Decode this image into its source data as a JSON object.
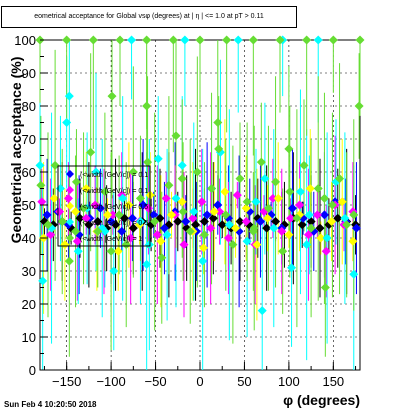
{
  "chart_data": {
    "type": "scatter",
    "title": "eometrical acceptance for Global vsφ (degrees) at | η | <= 1.0 at pT > 0.11",
    "xlabel": "φ (degrees)",
    "ylabel": "Geometrical acceptance (%)",
    "xlim": [
      -180,
      180
    ],
    "ylim": [
      0,
      100
    ],
    "x_ticks": [
      "−150",
      "−100",
      "−50",
      "0",
      "50",
      "100",
      "150"
    ],
    "y_ticks": [
      "0",
      "10",
      "20",
      "30",
      "40",
      "50",
      "60",
      "70",
      "80",
      "90",
      "100"
    ],
    "grid": true,
    "legend": {
      "placement": "left-middle",
      "entries": [
        "(<width [GeV/c]) = 0.1",
        "(<width [GeV/c]) = 0.1",
        "(<width [GeV/c]) = 0.5",
        "(<width [GeV/c]) = 0.5",
        "(<width [GeV/c]) = 1"
      ]
    },
    "series": [
      {
        "color": "#000000",
        "points": [
          [
            -175,
            45
          ],
          [
            -165,
            44
          ],
          [
            -155,
            45
          ],
          [
            -145,
            43
          ],
          [
            -135,
            46
          ],
          [
            -125,
            44
          ],
          [
            -115,
            45
          ],
          [
            -105,
            43
          ],
          [
            -95,
            44
          ],
          [
            -85,
            46
          ],
          [
            -75,
            43
          ],
          [
            -65,
            45
          ],
          [
            -55,
            44
          ],
          [
            -45,
            46
          ],
          [
            -35,
            44
          ],
          [
            -25,
            45
          ],
          [
            -15,
            43
          ],
          [
            -5,
            44
          ],
          [
            5,
            45
          ],
          [
            15,
            46
          ],
          [
            25,
            44
          ],
          [
            35,
            43
          ],
          [
            45,
            45
          ],
          [
            55,
            44
          ],
          [
            65,
            46
          ],
          [
            75,
            43
          ],
          [
            85,
            45
          ],
          [
            95,
            44
          ],
          [
            105,
            46
          ],
          [
            115,
            44
          ],
          [
            125,
            45
          ],
          [
            135,
            43
          ],
          [
            145,
            44
          ],
          [
            155,
            46
          ],
          [
            165,
            45
          ],
          [
            175,
            44
          ]
        ]
      },
      {
        "color": "#0000ff",
        "points": [
          [
            -172,
            47
          ],
          [
            -160,
            48
          ],
          [
            -148,
            44
          ],
          [
            -136,
            41
          ],
          [
            -124,
            46
          ],
          [
            -112,
            49
          ],
          [
            -100,
            45
          ],
          [
            -88,
            42
          ],
          [
            -76,
            46
          ],
          [
            -64,
            50
          ],
          [
            -52,
            47
          ],
          [
            -40,
            43
          ],
          [
            -28,
            48
          ],
          [
            -16,
            45
          ],
          [
            -4,
            42
          ],
          [
            8,
            47
          ],
          [
            20,
            50
          ],
          [
            32,
            46
          ],
          [
            44,
            42
          ],
          [
            56,
            48
          ],
          [
            68,
            45
          ],
          [
            80,
            47
          ],
          [
            92,
            43
          ],
          [
            104,
            49
          ],
          [
            116,
            46
          ],
          [
            128,
            42
          ],
          [
            140,
            47
          ],
          [
            152,
            51
          ],
          [
            164,
            45
          ],
          [
            176,
            43
          ]
        ]
      },
      {
        "color": "#ff00ff",
        "points": [
          [
            -178,
            51
          ],
          [
            -168,
            41
          ],
          [
            -158,
            48
          ],
          [
            -148,
            52
          ],
          [
            -138,
            39
          ],
          [
            -128,
            46
          ],
          [
            -118,
            50
          ],
          [
            -108,
            42
          ],
          [
            -98,
            47
          ],
          [
            -88,
            53
          ],
          [
            -78,
            40
          ],
          [
            -68,
            45
          ],
          [
            -58,
            49
          ],
          [
            -48,
            41
          ],
          [
            -38,
            52
          ],
          [
            -28,
            47
          ],
          [
            -18,
            38
          ],
          [
            -8,
            46
          ],
          [
            2,
            51
          ],
          [
            12,
            43
          ],
          [
            22,
            48
          ],
          [
            32,
            40
          ],
          [
            42,
            53
          ],
          [
            52,
            45
          ],
          [
            62,
            38
          ],
          [
            72,
            48
          ],
          [
            82,
            52
          ],
          [
            92,
            42
          ],
          [
            102,
            46
          ],
          [
            112,
            50
          ],
          [
            122,
            41
          ],
          [
            132,
            47
          ],
          [
            142,
            36
          ],
          [
            152,
            50
          ],
          [
            162,
            44
          ],
          [
            172,
            48
          ]
        ]
      },
      {
        "color": "#ffff00",
        "points": [
          [
            -176,
            40
          ],
          [
            -164,
            52
          ],
          [
            -152,
            38
          ],
          [
            -140,
            48
          ],
          [
            -128,
            55
          ],
          [
            -116,
            42
          ],
          [
            -104,
            47
          ],
          [
            -92,
            36
          ],
          [
            -80,
            50
          ],
          [
            -68,
            44
          ],
          [
            -56,
            53
          ],
          [
            -44,
            39
          ],
          [
            -32,
            47
          ],
          [
            -20,
            51
          ],
          [
            -8,
            42
          ],
          [
            4,
            37
          ],
          [
            16,
            48
          ],
          [
            28,
            54
          ],
          [
            40,
            43
          ],
          [
            52,
            49
          ],
          [
            64,
            38
          ],
          [
            76,
            46
          ],
          [
            88,
            52
          ],
          [
            100,
            41
          ],
          [
            112,
            47
          ],
          [
            124,
            55
          ],
          [
            136,
            40
          ],
          [
            148,
            45
          ],
          [
            160,
            51
          ],
          [
            172,
            39
          ]
        ]
      },
      {
        "color": "#00ffff",
        "points": [
          [
            -177,
            27
          ],
          [
            -167,
            43
          ],
          [
            -157,
            55
          ],
          [
            -147,
            83
          ],
          [
            -137,
            36
          ],
          [
            -127,
            49
          ],
          [
            -117,
            60
          ],
          [
            -107,
            42
          ],
          [
            -97,
            30
          ],
          [
            -87,
            52
          ],
          [
            -77,
            100
          ],
          [
            -67,
            45
          ],
          [
            -57,
            38
          ],
          [
            -47,
            64
          ],
          [
            -37,
            41
          ],
          [
            -27,
            52
          ],
          [
            -17,
            100
          ],
          [
            -7,
            48
          ],
          [
            3,
            33
          ],
          [
            13,
            55
          ],
          [
            23,
            66
          ],
          [
            33,
            44
          ],
          [
            43,
            100
          ],
          [
            53,
            39
          ],
          [
            63,
            51
          ],
          [
            73,
            58
          ],
          [
            83,
            43
          ],
          [
            93,
            100
          ],
          [
            103,
            31
          ],
          [
            113,
            54
          ],
          [
            123,
            47
          ],
          [
            133,
            100
          ],
          [
            143,
            40
          ],
          [
            153,
            57
          ],
          [
            163,
            46
          ],
          [
            173,
            29
          ],
          [
            -150,
            75
          ],
          [
            -110,
            43
          ],
          [
            -60,
            32
          ],
          [
            -20,
            62
          ],
          [
            70,
            18
          ],
          [
            120,
            38
          ],
          [
            -180,
            62
          ]
        ]
      },
      {
        "color": "#66dd33",
        "points": [
          [
            -179,
            56
          ],
          [
            -171,
            44
          ],
          [
            -163,
            62
          ],
          [
            -155,
            45
          ],
          [
            -147,
            33
          ],
          [
            -139,
            57
          ],
          [
            -131,
            49
          ],
          [
            -123,
            66
          ],
          [
            -115,
            42
          ],
          [
            -107,
            54
          ],
          [
            -99,
            83
          ],
          [
            -91,
            47
          ],
          [
            -83,
            38
          ],
          [
            -75,
            60
          ],
          [
            -67,
            52
          ],
          [
            -59,
            63
          ],
          [
            -51,
            45
          ],
          [
            -43,
            34
          ],
          [
            -35,
            56
          ],
          [
            -27,
            71
          ],
          [
            -19,
            48
          ],
          [
            -11,
            42
          ],
          [
            -3,
            60
          ],
          [
            5,
            41
          ],
          [
            13,
            55
          ],
          [
            21,
            67
          ],
          [
            29,
            47
          ],
          [
            37,
            38
          ],
          [
            45,
            58
          ],
          [
            53,
            51
          ],
          [
            61,
            43
          ],
          [
            69,
            63
          ],
          [
            77,
            49
          ],
          [
            85,
            57
          ],
          [
            93,
            36
          ],
          [
            101,
            54
          ],
          [
            109,
            46
          ],
          [
            117,
            62
          ],
          [
            125,
            43
          ],
          [
            133,
            55
          ],
          [
            141,
            25
          ],
          [
            149,
            50
          ],
          [
            157,
            58
          ],
          [
            165,
            44
          ],
          [
            173,
            47
          ],
          [
            179,
            80
          ],
          [
            -140,
            42
          ],
          [
            -100,
            36
          ],
          [
            -60,
            80
          ],
          [
            -20,
            58
          ],
          [
            20,
            75
          ],
          [
            60,
            42
          ],
          [
            100,
            67
          ],
          [
            140,
            52
          ],
          [
            -180,
            100
          ],
          [
            -150,
            100
          ],
          [
            -120,
            100
          ],
          [
            -90,
            100
          ],
          [
            -60,
            100
          ],
          [
            -30,
            100
          ],
          [
            0,
            100
          ],
          [
            30,
            100
          ],
          [
            60,
            100
          ],
          [
            90,
            100
          ],
          [
            120,
            100
          ],
          [
            150,
            100
          ],
          [
            180,
            100
          ]
        ]
      }
    ]
  },
  "footer": {
    "datestamp": "Sun Feb  4 10:20:50 2018"
  }
}
